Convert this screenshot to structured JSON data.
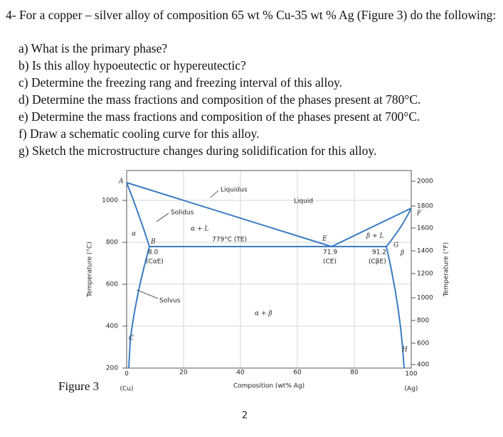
{
  "question": {
    "intro": "4- For a copper – silver alloy of composition 65 wt % Cu-35 wt % Ag (Figure 3) do the following:",
    "items": [
      "a)  What is the primary phase?",
      "b)  Is this alloy hypoeutectic or hypereutectic?",
      "c)  Determine the freezing rang and freezing interval of this alloy.",
      "d)  Determine the mass fractions and composition of the phases present at 780°C.",
      "e)  Determine the mass fractions and composition of the phases present at 700°C.",
      "f)  Draw a schematic cooling curve for this alloy.",
      "g)  Sketch the microstructure changes during solidification for this alloy."
    ]
  },
  "figure": {
    "caption": "Figure 3",
    "y_label": "Temperature (°C)",
    "y2_label": "Temperature (°F)",
    "x_label": "Composition (wt% Ag)",
    "yticks": [
      "1000",
      "800",
      "600",
      "400",
      "200"
    ],
    "y2ticks": [
      "2000",
      "1800",
      "1600",
      "1400",
      "1200",
      "1000",
      "800",
      "600",
      "400"
    ],
    "xticks": [
      "0",
      "20",
      "40",
      "60",
      "80",
      "100"
    ],
    "x_left_end": "(Cu)",
    "x_right_end": "(Ag)",
    "annotations": {
      "A": "A",
      "B": "B",
      "C": "C",
      "E": "E",
      "F": "F",
      "G": "G",
      "H": "H",
      "liquidus": "Liquidus",
      "liquid": "Liquid",
      "solidus": "Solidus",
      "solvus": "Solvus",
      "alpha": "α",
      "beta": "β",
      "alpha_l": "α + L",
      "beta_l": "β + L",
      "alpha_beta": "α + β",
      "eutectic_temp": "779°C (TE)",
      "c_alpha": "8.0",
      "c_alpha_sym": "(CαE)",
      "c_e": "71.9",
      "c_e_sym": "(CE)",
      "c_beta": "91.2",
      "c_beta_sym": "(CβE)"
    }
  },
  "page_number": "2"
}
